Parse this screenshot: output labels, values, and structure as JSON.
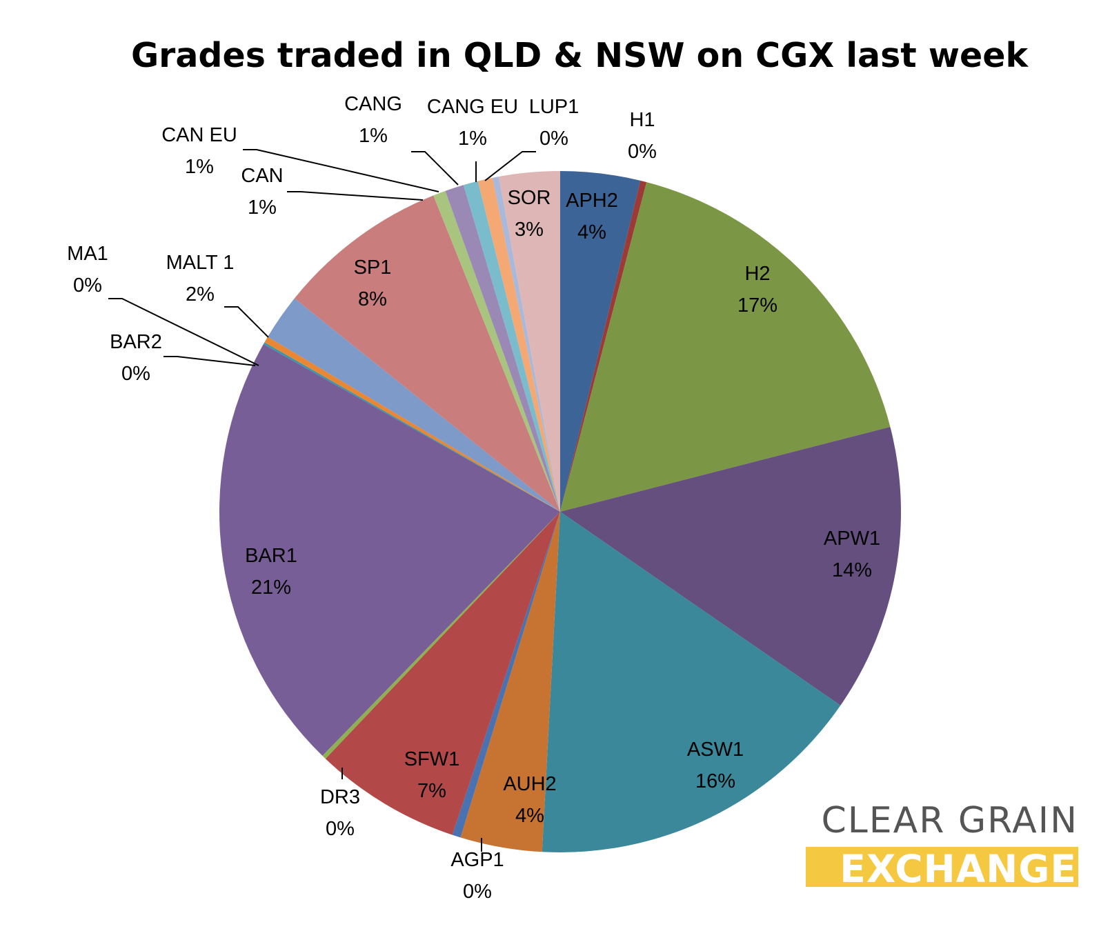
{
  "chart_data": {
    "type": "pie",
    "title": "Grades traded in QLD & NSW on CGX last week",
    "start_angle_deg": 0,
    "direction": "clockwise",
    "slices": [
      {
        "label": "APH2",
        "percent_label": "4%",
        "value": 3.8,
        "color": "#3c6496"
      },
      {
        "label": "H1",
        "percent_label": "0%",
        "value": 0.3,
        "color": "#9b3a36"
      },
      {
        "label": "H2",
        "percent_label": "17%",
        "value": 17.0,
        "color": "#7b9645"
      },
      {
        "label": "APW1",
        "percent_label": "14%",
        "value": 13.7,
        "color": "#644f7f"
      },
      {
        "label": "ASW1",
        "percent_label": "16%",
        "value": 16.3,
        "color": "#3a8899"
      },
      {
        "label": "AUH2",
        "percent_label": "4%",
        "value": 3.9,
        "color": "#c77433"
      },
      {
        "label": "AGP1",
        "percent_label": "0%",
        "value": 0.4,
        "color": "#4a71b0"
      },
      {
        "label": "SFW1",
        "percent_label": "7%",
        "value": 7.0,
        "color": "#b24948"
      },
      {
        "label": "DR3",
        "percent_label": "0%",
        "value": 0.2,
        "color": "#8fb052"
      },
      {
        "label": "BAR1",
        "percent_label": "21%",
        "value": 21.0,
        "color": "#775e96"
      },
      {
        "label": "BAR2",
        "percent_label": "0%",
        "value": 0.1,
        "color": "#3a96a8"
      },
      {
        "label": "MA1",
        "percent_label": "0%",
        "value": 0.3,
        "color": "#e98734"
      },
      {
        "label": "MALT 1",
        "percent_label": "2%",
        "value": 2.2,
        "color": "#7e9ac8"
      },
      {
        "label": "SP1",
        "percent_label": "8%",
        "value": 8.2,
        "color": "#c97d7c"
      },
      {
        "label": "CAN",
        "percent_label": "1%",
        "value": 0.6,
        "color": "#a9c47e"
      },
      {
        "label": "CAN EU",
        "percent_label": "1%",
        "value": 0.9,
        "color": "#9a88b5"
      },
      {
        "label": "CANG",
        "percent_label": "1%",
        "value": 0.7,
        "color": "#7bbccc"
      },
      {
        "label": "CANG EU",
        "percent_label": "1%",
        "value": 0.7,
        "color": "#f4a874"
      },
      {
        "label": "LUP1",
        "percent_label": "0%",
        "value": 0.3,
        "color": "#aab8d9"
      },
      {
        "label": "SOR",
        "percent_label": "3%",
        "value": 2.9,
        "color": "#dfb6b6"
      }
    ],
    "legend": "none"
  },
  "logo": {
    "line1": "CLEAR GRAIN",
    "line2": "EXCHANGE",
    "accent_color": "#f5c842",
    "text_color": "#555555"
  }
}
